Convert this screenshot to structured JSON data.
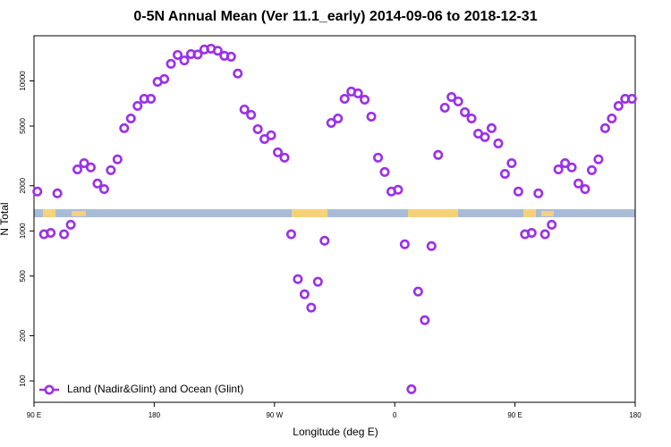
{
  "chart_data": {
    "type": "scatter",
    "title": "0-5N Annual Mean (Ver 11.1_early)   2014-09-06 to 2018-12-31",
    "x_label": "Longitude (deg E)",
    "y_label": "N Total",
    "xlim": [
      90,
      540
    ],
    "xticks": [
      {
        "value": 90,
        "label": "90 E"
      },
      180,
      {
        "value": 270,
        "label": "90 W"
      },
      {
        "value": 360,
        "label": "0"
      },
      {
        "value": 450,
        "label": "90 E"
      },
      {
        "value": 540,
        "label": "180"
      }
    ],
    "ylim": [
      72,
      20000
    ],
    "yticks": [
      100,
      200,
      500,
      1000,
      2000,
      5000,
      10000
    ],
    "y_log": true,
    "legend": "lower left",
    "series": [
      {
        "name": "Land (Nadir&Glint) and Ocean (Glint)",
        "color": "#9b30e8",
        "x": [
          92.5,
          97.5,
          102.5,
          107.5,
          112.5,
          117.5,
          122.5,
          127.5,
          132.5,
          137.5,
          142.5,
          147.5,
          152.5,
          157.5,
          162.5,
          167.5,
          172.5,
          177.5,
          182.5,
          187.5,
          192.5,
          197.5,
          202.5,
          207.5,
          212.5,
          217.5,
          222.5,
          227.5,
          232.5,
          237.5,
          242.5,
          247.5,
          252.5,
          257.5,
          262.5,
          267.5,
          272.5,
          277.5,
          282.5,
          287.5,
          292.5,
          297.5,
          302.5,
          307.5,
          312.5,
          317.5,
          322.5,
          327.5,
          332.5,
          337.5,
          342.5,
          347.5,
          352.5,
          357.5,
          362.5,
          367.5,
          372.5,
          377.5,
          382.5,
          387.5,
          392.5,
          397.5,
          402.5,
          407.5,
          412.5,
          417.5,
          422.5,
          427.5,
          432.5,
          437.5,
          442.5,
          447.5,
          452.5,
          457.5,
          462.5,
          467.5,
          472.5,
          477.5,
          482.5,
          487.5,
          492.5,
          497.5,
          502.5,
          507.5,
          512.5,
          517.5,
          522.5,
          527.5,
          532.5,
          537.5
        ],
        "values": [
          1830,
          950,
          970,
          1780,
          950,
          1100,
          2570,
          2830,
          2650,
          2070,
          1900,
          2540,
          3000,
          4840,
          5620,
          6810,
          7600,
          7600,
          9860,
          10300,
          13000,
          14900,
          13700,
          15100,
          15000,
          16200,
          16400,
          15900,
          14700,
          14500,
          11200,
          6450,
          5940,
          4770,
          4100,
          4340,
          3340,
          3080,
          950,
          477,
          378,
          308,
          458,
          860,
          5250,
          5620,
          7600,
          8490,
          8260,
          7500,
          5780,
          3080,
          2470,
          1830,
          1880,
          814,
          88,
          394,
          254,
          792,
          3210,
          6630,
          7810,
          7300,
          6190,
          5620,
          4450,
          4220,
          4840,
          3830,
          2400,
          2830,
          1830,
          950,
          970,
          1780,
          950,
          1100,
          2570,
          2830,
          2650,
          2070,
          1900,
          2540,
          3000,
          4840,
          5620,
          6810,
          7600,
          7600
        ]
      }
    ]
  }
}
